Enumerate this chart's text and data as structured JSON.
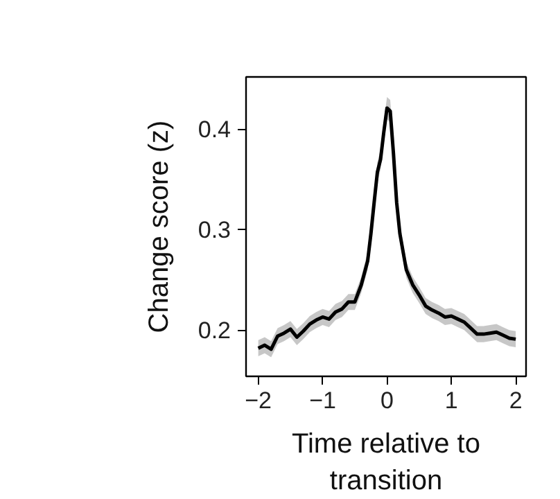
{
  "chart_data": {
    "type": "line",
    "xlabel": "Time relative to transition",
    "ylabel": "Change score (z)",
    "x": [
      -2,
      -1.9,
      -1.8,
      -1.7,
      -1.6,
      -1.5,
      -1.4,
      -1.3,
      -1.2,
      -1.1,
      -1.0,
      -0.9,
      -0.8,
      -0.7,
      -0.6,
      -0.5,
      -0.4,
      -0.3,
      -0.25,
      -0.2,
      -0.15,
      -0.1,
      -0.05,
      0,
      0.05,
      0.1,
      0.15,
      0.2,
      0.3,
      0.4,
      0.5,
      0.6,
      0.7,
      0.8,
      0.9,
      1.0,
      1.1,
      1.2,
      1.3,
      1.4,
      1.5,
      1.6,
      1.7,
      1.8,
      1.9,
      2.0
    ],
    "series": [
      {
        "color": "#000000",
        "values": [
          0.182,
          0.185,
          0.181,
          0.194,
          0.197,
          0.201,
          0.193,
          0.199,
          0.206,
          0.21,
          0.213,
          0.211,
          0.218,
          0.221,
          0.228,
          0.228,
          0.245,
          0.269,
          0.296,
          0.327,
          0.357,
          0.37,
          0.397,
          0.421,
          0.418,
          0.376,
          0.327,
          0.296,
          0.26,
          0.245,
          0.235,
          0.224,
          0.22,
          0.217,
          0.213,
          0.214,
          0.211,
          0.208,
          0.202,
          0.196,
          0.196,
          0.197,
          0.198,
          0.195,
          0.192,
          0.191
        ],
        "lower": [
          0.174,
          0.177,
          0.173,
          0.186,
          0.189,
          0.193,
          0.185,
          0.191,
          0.198,
          0.202,
          0.205,
          0.203,
          0.21,
          0.213,
          0.22,
          0.22,
          0.237,
          0.26,
          0.287,
          0.318,
          0.347,
          0.36,
          0.386,
          0.41,
          0.407,
          0.366,
          0.318,
          0.287,
          0.252,
          0.237,
          0.227,
          0.216,
          0.212,
          0.209,
          0.205,
          0.206,
          0.203,
          0.2,
          0.194,
          0.188,
          0.188,
          0.189,
          0.19,
          0.187,
          0.184,
          0.183
        ],
        "upper": [
          0.19,
          0.193,
          0.189,
          0.202,
          0.205,
          0.209,
          0.201,
          0.207,
          0.214,
          0.218,
          0.221,
          0.219,
          0.226,
          0.229,
          0.236,
          0.236,
          0.253,
          0.278,
          0.305,
          0.336,
          0.367,
          0.38,
          0.408,
          0.432,
          0.429,
          0.386,
          0.336,
          0.305,
          0.268,
          0.253,
          0.243,
          0.232,
          0.228,
          0.225,
          0.221,
          0.222,
          0.219,
          0.216,
          0.21,
          0.204,
          0.204,
          0.205,
          0.206,
          0.203,
          0.2,
          0.199
        ]
      }
    ],
    "xlim": [
      -2.19,
      2.16
    ],
    "ylim": [
      0.154,
      0.452
    ],
    "xticks": [
      {
        "value": -2,
        "label": "−2"
      },
      {
        "value": -1,
        "label": "−1"
      },
      0,
      1,
      2
    ],
    "yticks": [
      0.2,
      0.3,
      0.4
    ],
    "grid": false
  }
}
